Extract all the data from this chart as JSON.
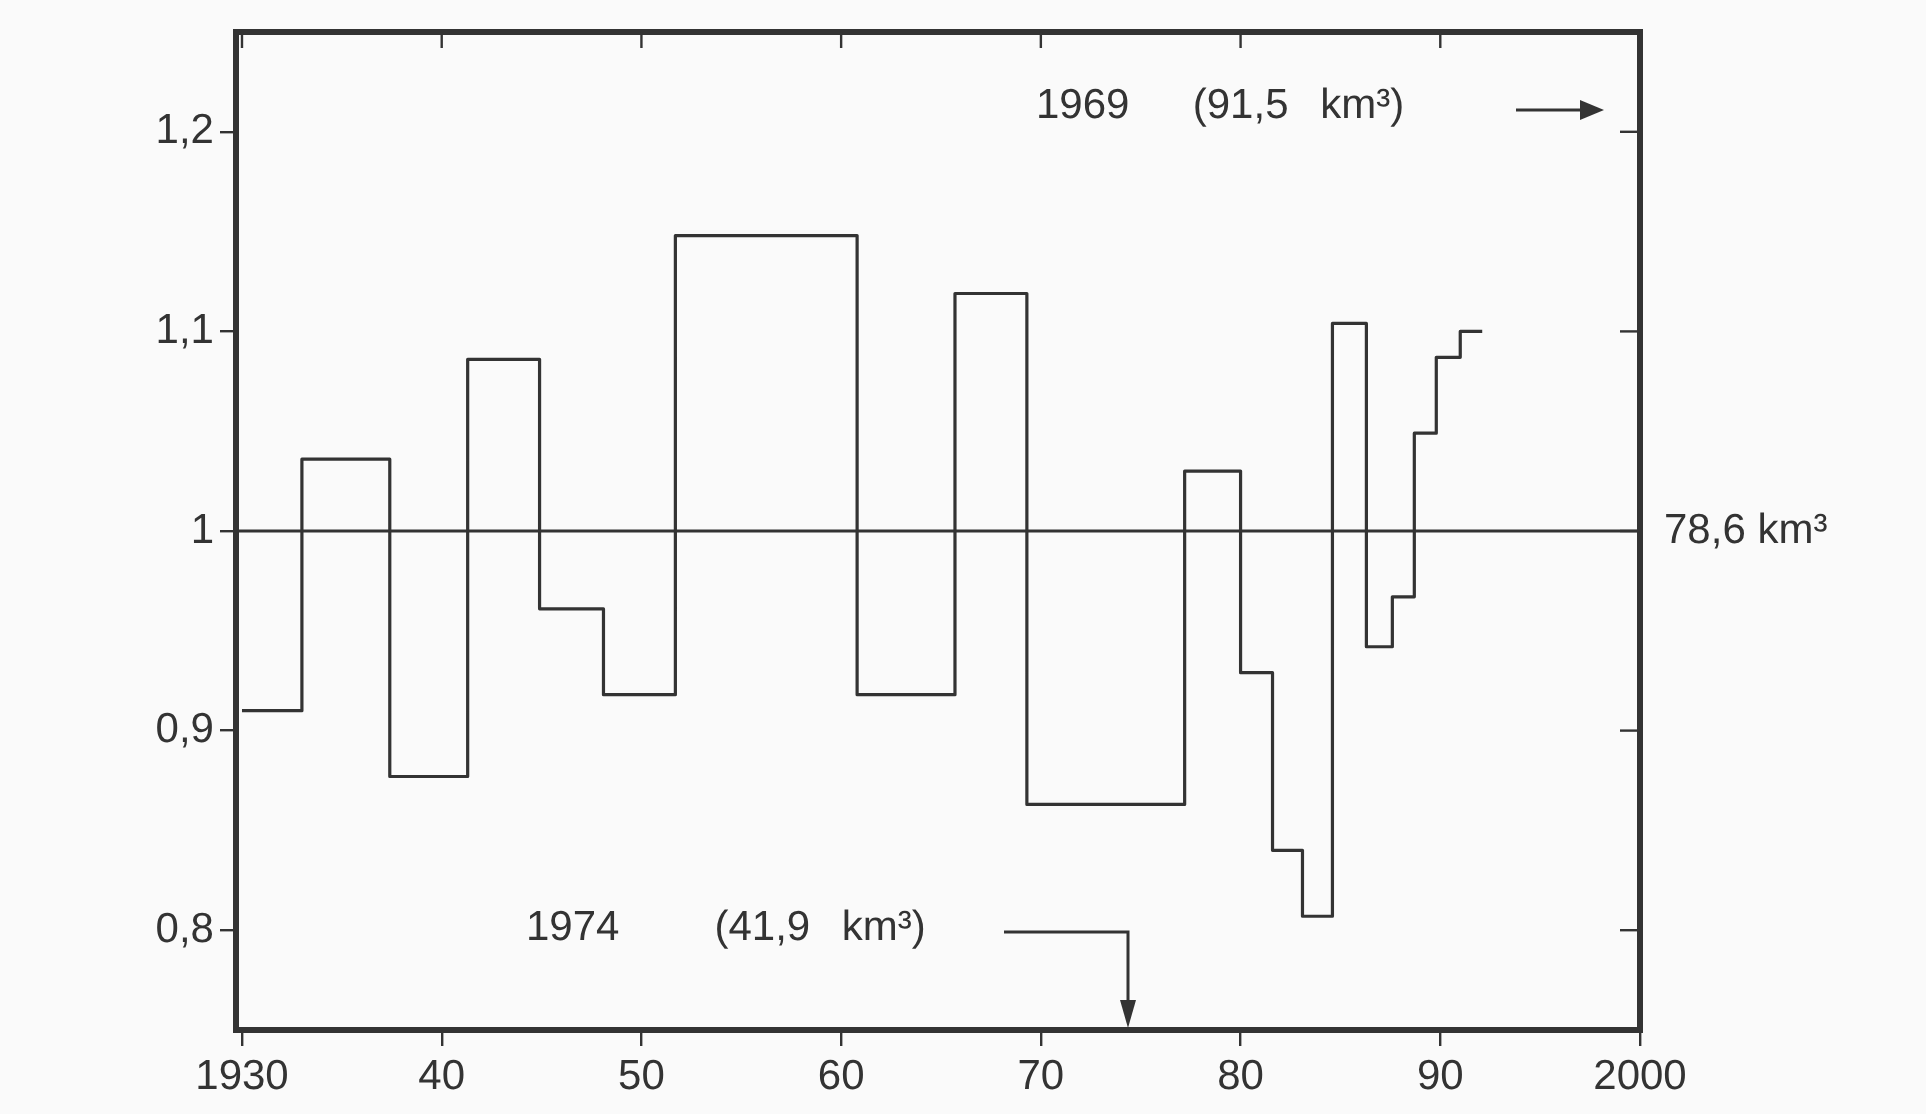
{
  "chart_data": {
    "type": "step",
    "x": [
      1930,
      1933,
      1937.4,
      1941.3,
      1944.9,
      1948.1,
      1951.7,
      1960.8,
      1965.7,
      1969.3,
      1977.2,
      1980,
      1981.6,
      1983.1,
      1984.6,
      1986.3,
      1987.6,
      1988.7,
      1989.8,
      1991,
      1992.1
    ],
    "series": [
      {
        "color": "#333333",
        "values": [
          0.91,
          1.036,
          0.877,
          1.086,
          0.961,
          0.918,
          1.148,
          0.918,
          1.119,
          0.863,
          1.03,
          0.929,
          0.84,
          0.807,
          1.104,
          0.942,
          0.967,
          1.049,
          1.087,
          1.1,
          1.1
        ]
      }
    ],
    "xlim": [
      1929.7,
      2000
    ],
    "xticks": [
      1930,
      {
        "value": 1940,
        "label": "40"
      },
      {
        "value": 1950,
        "label": "50"
      },
      {
        "value": 1960,
        "label": "60"
      },
      {
        "value": 1970,
        "label": "70"
      },
      {
        "value": 1980,
        "label": "80"
      },
      {
        "value": 1990,
        "label": "90"
      },
      2000
    ],
    "ylim": [
      0.75,
      1.25
    ],
    "yticks": [
      {
        "value": 0.8,
        "label": "0,8"
      },
      {
        "value": 0.9,
        "label": "0,9"
      },
      1,
      {
        "value": 1.1,
        "label": "1,1"
      },
      {
        "value": 1.2,
        "label": "1,2"
      }
    ],
    "ref_lines": [
      {
        "axis": "y",
        "value": 1,
        "label": "78,6 km³",
        "color": "#333333"
      }
    ],
    "annotations": [
      "1969  (91,5 km³)",
      "1974   (41,9 km³)"
    ],
    "grid": false,
    "legend": false,
    "marker": "none",
    "line_style": "solid"
  }
}
